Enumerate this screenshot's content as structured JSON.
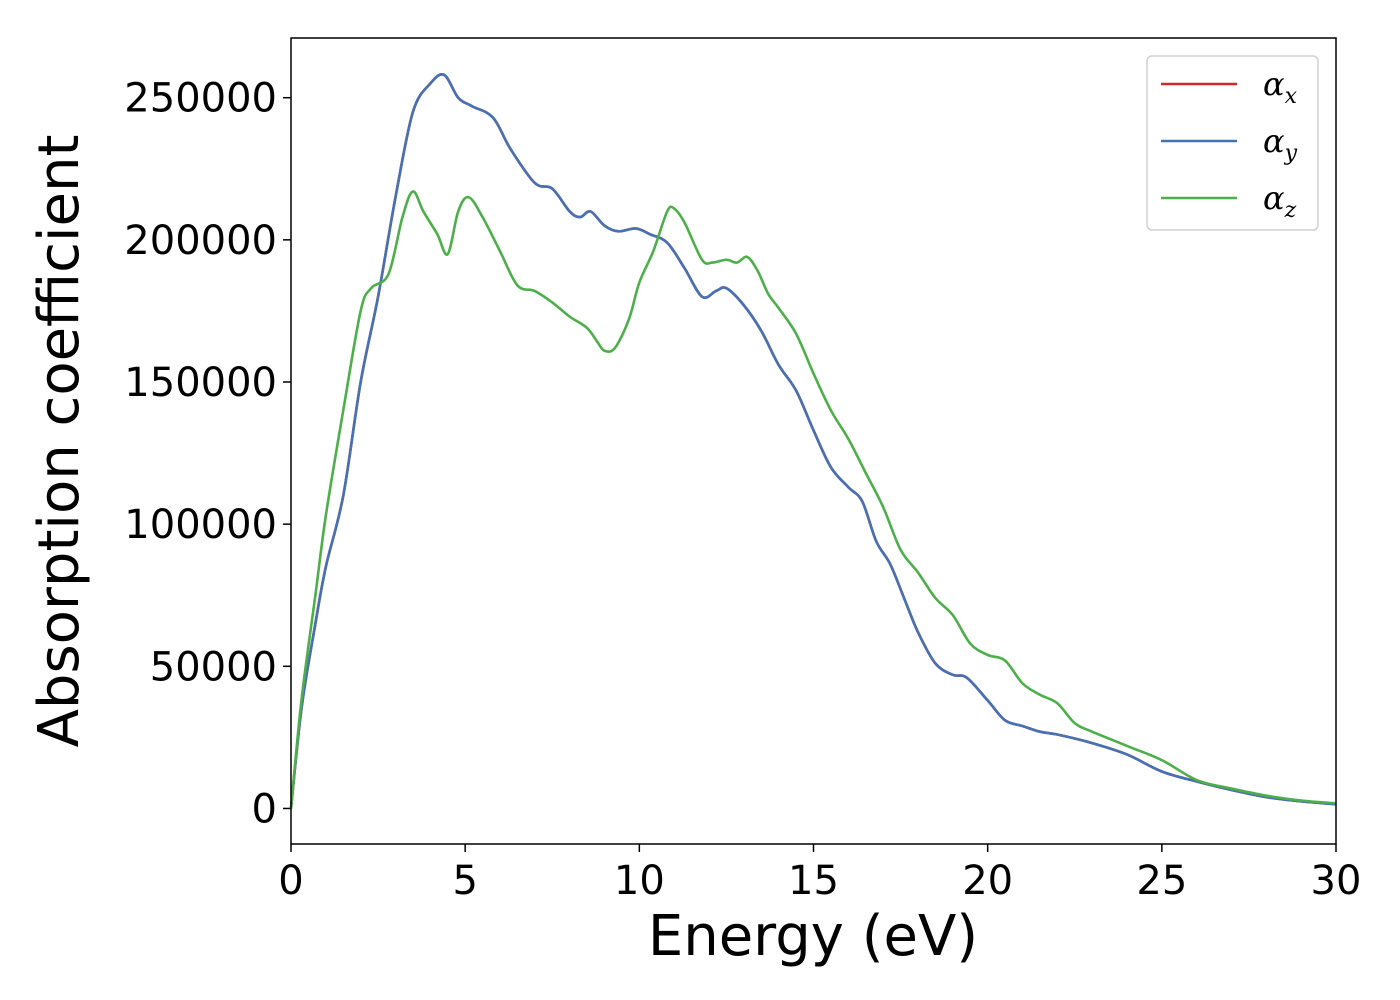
{
  "chart_data": {
    "type": "line",
    "title": "",
    "xlabel": "Energy (eV)",
    "ylabel": "Absorption coefficient",
    "xlim": [
      0,
      30
    ],
    "ylim": [
      -12500,
      271000
    ],
    "xticks": [
      0,
      5,
      10,
      15,
      20,
      25,
      30
    ],
    "xtick_labels": [
      "0",
      "5",
      "10",
      "15",
      "20",
      "25",
      "30"
    ],
    "yticks": [
      0,
      50000,
      100000,
      150000,
      200000,
      250000
    ],
    "ytick_labels": [
      "0",
      "50000",
      "100000",
      "150000",
      "200000",
      "250000"
    ],
    "grid": false,
    "legend": {
      "position": "top-right"
    },
    "series": [
      {
        "name": "α",
        "subscript": "x",
        "color": "#d62728",
        "x": [
          0,
          0.3,
          0.7,
          1.0,
          1.5,
          2.0,
          2.5,
          3.0,
          3.5,
          4.0,
          4.4,
          4.8,
          5.2,
          5.8,
          6.3,
          7.0,
          7.5,
          8.0,
          8.3,
          8.6,
          9.0,
          9.4,
          9.9,
          10.3,
          10.8,
          11.3,
          11.8,
          12.2,
          12.5,
          13.0,
          13.5,
          14.0,
          14.5,
          15.0,
          15.5,
          16.0,
          16.4,
          16.8,
          17.2,
          17.6,
          18.0,
          18.5,
          19.0,
          19.4,
          20.0,
          20.5,
          21.0,
          21.5,
          22.0,
          23.0,
          24.0,
          25.0,
          26.0,
          27.0,
          28.0,
          29.0,
          30.0
        ],
        "y": [
          0,
          35000,
          65000,
          85000,
          110000,
          150000,
          180000,
          215000,
          245000,
          255000,
          258000,
          250000,
          247000,
          243000,
          232000,
          220000,
          218000,
          210000,
          208000,
          210000,
          205000,
          203000,
          204000,
          202000,
          199000,
          190000,
          180000,
          182000,
          183000,
          177000,
          168000,
          156000,
          147000,
          133000,
          120000,
          113000,
          108000,
          94000,
          86000,
          74000,
          62000,
          51000,
          47000,
          46000,
          38000,
          31000,
          29000,
          27000,
          26000,
          23000,
          19000,
          13000,
          9500,
          6500,
          4000,
          2500,
          1500
        ]
      },
      {
        "name": "α",
        "subscript": "y",
        "color": "#4472b4",
        "x": [
          0,
          0.3,
          0.7,
          1.0,
          1.5,
          2.0,
          2.5,
          3.0,
          3.5,
          4.0,
          4.4,
          4.8,
          5.2,
          5.8,
          6.3,
          7.0,
          7.5,
          8.0,
          8.3,
          8.6,
          9.0,
          9.4,
          9.9,
          10.3,
          10.8,
          11.3,
          11.8,
          12.2,
          12.5,
          13.0,
          13.5,
          14.0,
          14.5,
          15.0,
          15.5,
          16.0,
          16.4,
          16.8,
          17.2,
          17.6,
          18.0,
          18.5,
          19.0,
          19.4,
          20.0,
          20.5,
          21.0,
          21.5,
          22.0,
          23.0,
          24.0,
          25.0,
          26.0,
          27.0,
          28.0,
          29.0,
          30.0
        ],
        "y": [
          0,
          35000,
          65000,
          85000,
          110000,
          150000,
          180000,
          215000,
          245000,
          255000,
          258000,
          250000,
          247000,
          243000,
          232000,
          220000,
          218000,
          210000,
          208000,
          210000,
          205000,
          203000,
          204000,
          202000,
          199000,
          190000,
          180000,
          182000,
          183000,
          177000,
          168000,
          156000,
          147000,
          133000,
          120000,
          113000,
          108000,
          94000,
          86000,
          74000,
          62000,
          51000,
          47000,
          46000,
          38000,
          31000,
          29000,
          27000,
          26000,
          23000,
          19000,
          13000,
          9500,
          6500,
          4000,
          2500,
          1500
        ]
      },
      {
        "name": "α",
        "subscript": "z",
        "color": "#4daf4a",
        "x": [
          0,
          0.3,
          0.7,
          1.0,
          1.5,
          2.0,
          2.3,
          2.8,
          3.2,
          3.5,
          3.8,
          4.2,
          4.5,
          4.8,
          5.1,
          5.5,
          6.0,
          6.5,
          7.0,
          7.5,
          8.0,
          8.5,
          8.8,
          9.0,
          9.3,
          9.7,
          10.0,
          10.4,
          10.8,
          11.0,
          11.3,
          11.8,
          12.1,
          12.5,
          12.8,
          13.1,
          13.4,
          13.7,
          14.0,
          14.5,
          15.0,
          15.5,
          16.0,
          16.5,
          17.0,
          17.5,
          18.0,
          18.5,
          19.0,
          19.5,
          20.0,
          20.5,
          21.0,
          21.5,
          22.0,
          22.5,
          23.0,
          24.0,
          25.0,
          26.0,
          27.0,
          28.0,
          29.0,
          30.0
        ],
        "y": [
          0,
          38000,
          75000,
          103000,
          140000,
          175000,
          183000,
          188000,
          208000,
          217000,
          210000,
          202000,
          195000,
          210000,
          215000,
          208000,
          196000,
          184000,
          182000,
          178000,
          173000,
          169000,
          164000,
          161000,
          162000,
          172000,
          185000,
          196000,
          210000,
          211000,
          206000,
          193000,
          192000,
          193000,
          192000,
          194000,
          189000,
          181000,
          176000,
          167000,
          153000,
          140000,
          130000,
          118000,
          106000,
          91000,
          83000,
          74000,
          68000,
          58000,
          54000,
          52000,
          44000,
          40000,
          37000,
          30000,
          27000,
          22000,
          17000,
          10000,
          7000,
          4500,
          2800,
          1800
        ]
      }
    ]
  }
}
